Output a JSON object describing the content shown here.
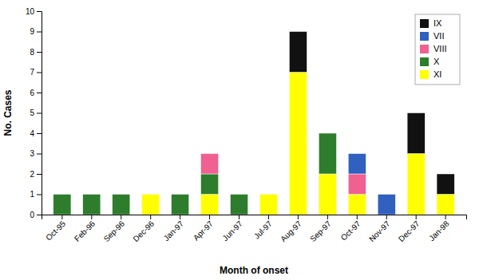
{
  "chart_data": {
    "type": "bar",
    "stacked": true,
    "categories": [
      "Oct-95",
      "Feb-96",
      "Sep-96",
      "Dec-96",
      "Jan-97",
      "Apr-97",
      "Jun-97",
      "Jul-97",
      "Aug-97",
      "Sep-97",
      "Oct-97",
      "Nov-97",
      "Dec-97",
      "Jan-98"
    ],
    "series": [
      {
        "name": "XI",
        "color": "#ffff00",
        "values": [
          0,
          0,
          0,
          1,
          0,
          1,
          0,
          1,
          7,
          2,
          1,
          0,
          3,
          1
        ]
      },
      {
        "name": "X",
        "color": "#2d7d2d",
        "values": [
          1,
          1,
          1,
          0,
          1,
          1,
          1,
          0,
          0,
          2,
          0,
          0,
          0,
          0
        ]
      },
      {
        "name": "VIII",
        "color": "#f06090",
        "values": [
          0,
          0,
          0,
          0,
          0,
          1,
          0,
          0,
          0,
          0,
          1,
          0,
          0,
          0
        ]
      },
      {
        "name": "VII",
        "color": "#3060c0",
        "values": [
          0,
          0,
          0,
          0,
          0,
          0,
          0,
          0,
          0,
          0,
          1,
          1,
          0,
          0
        ]
      },
      {
        "name": "IX",
        "color": "#111111",
        "values": [
          0,
          0,
          0,
          0,
          0,
          0,
          0,
          0,
          2,
          0,
          0,
          0,
          2,
          1
        ]
      }
    ],
    "xlabel": "Month of onset",
    "ylabel": "No. Cases",
    "ylim": [
      0,
      10
    ],
    "yticks": [
      0,
      1,
      2,
      3,
      4,
      5,
      6,
      7,
      8,
      9,
      10
    ],
    "legend": "upper right"
  }
}
